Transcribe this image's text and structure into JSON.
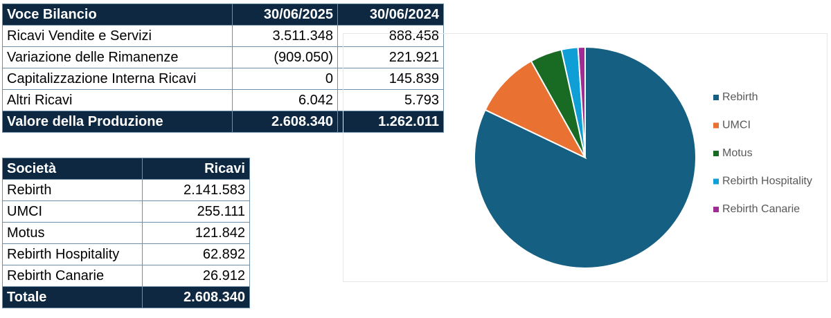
{
  "balance_table": {
    "header": [
      "Voce Bilancio",
      "30/06/2025",
      "30/06/2024"
    ],
    "rows": [
      [
        "Ricavi Vendite e Servizi",
        "3.511.348",
        "888.458"
      ],
      [
        "Variazione delle Rimanenze",
        "(909.050)",
        "221.921"
      ],
      [
        "Capitalizzazione Interna Ricavi",
        "0",
        "145.839"
      ],
      [
        "Altri Ricavi",
        "6.042",
        "5.793"
      ]
    ],
    "total": [
      "Valore della Produzione",
      "2.608.340",
      "1.262.011"
    ]
  },
  "revenue_table": {
    "header": [
      "Società",
      "Ricavi"
    ],
    "rows": [
      [
        "Rebirth",
        "2.141.583"
      ],
      [
        "UMCI",
        "255.111"
      ],
      [
        "Motus",
        "121.842"
      ],
      [
        "Rebirth Hospitality",
        "62.892"
      ],
      [
        "Rebirth Canarie",
        "26.912"
      ]
    ],
    "total": [
      "Totale",
      "2.608.340"
    ]
  },
  "chart_data": {
    "type": "pie",
    "categories": [
      "Rebirth",
      "UMCI",
      "Motus",
      "Rebirth Hospitality",
      "Rebirth Canarie"
    ],
    "values": [
      2141583,
      255111,
      121842,
      62892,
      26912
    ],
    "colors": [
      "#156082",
      "#e97132",
      "#196b24",
      "#0f9ed5",
      "#a02b93"
    ],
    "legend": "right"
  }
}
